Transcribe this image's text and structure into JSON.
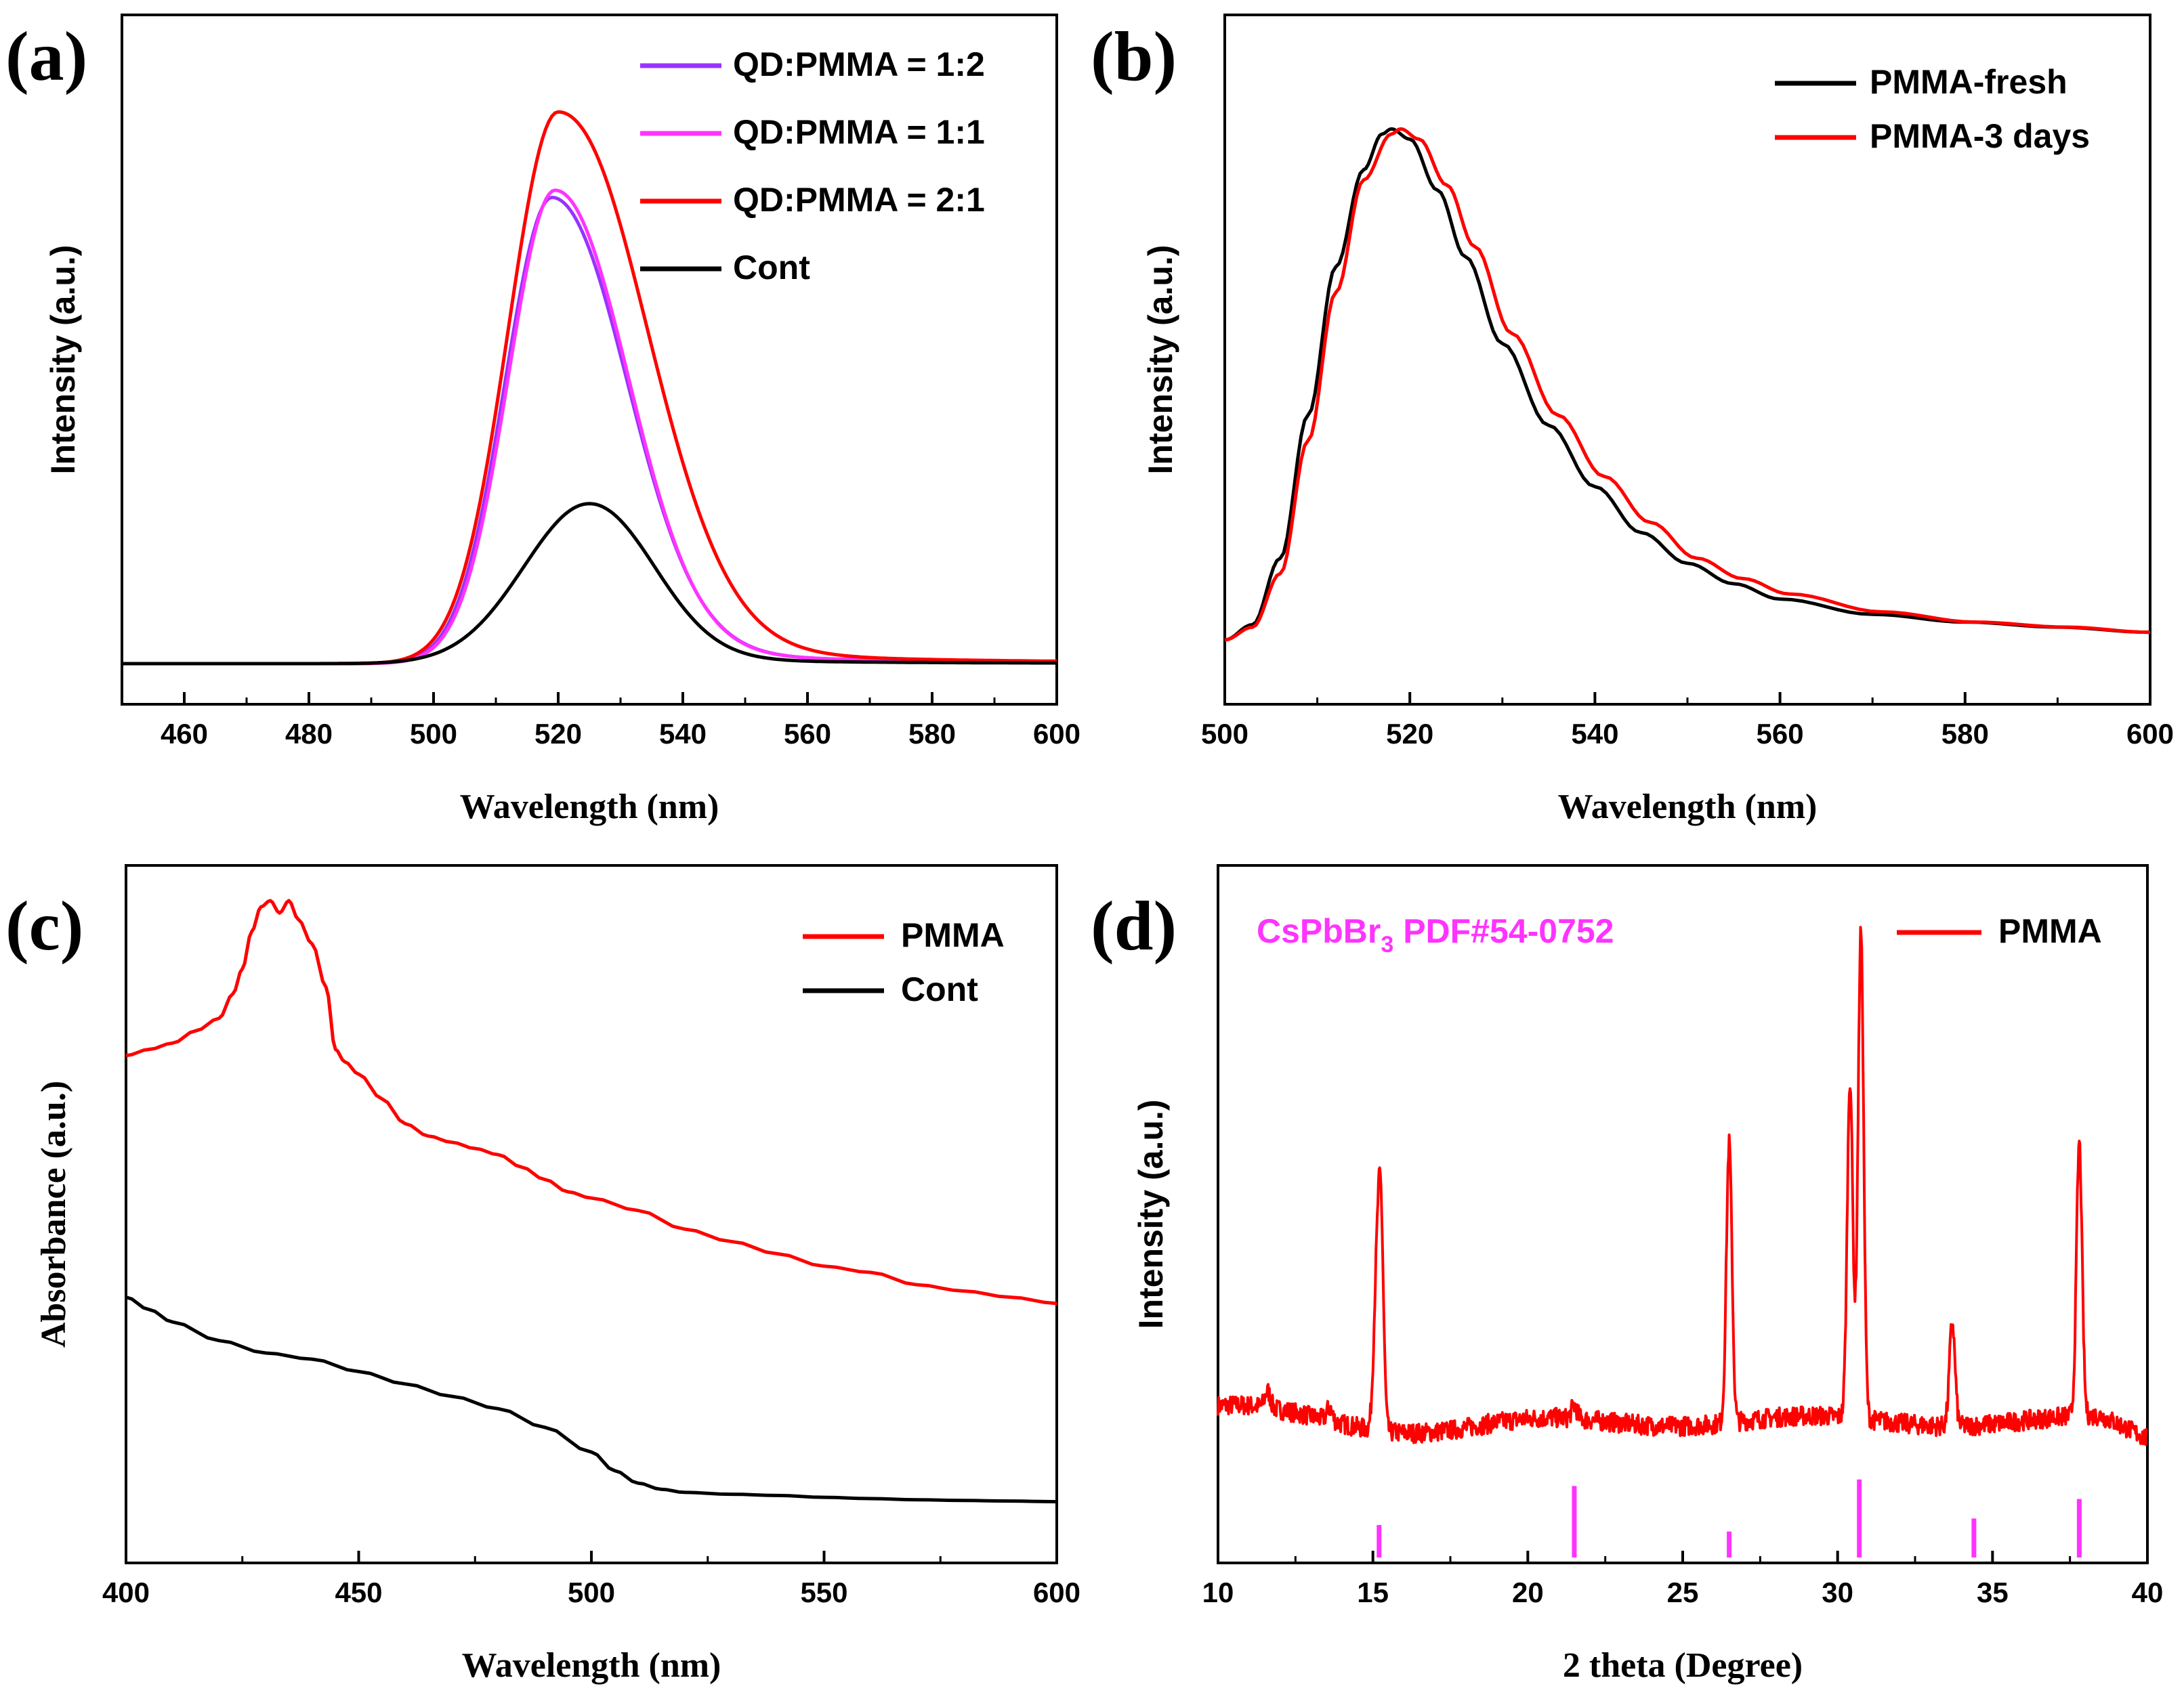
{
  "colors": {
    "black": "#000000",
    "red": "#ff0000",
    "purple": "#9933ff",
    "magenta": "#ff33ff"
  },
  "chart_data": [
    {
      "panel": "(a)",
      "type": "line",
      "xlabel": "Wavelength (nm)",
      "ylabel": "Intensity (a.u.)",
      "xlim": [
        450,
        600
      ],
      "ylim": [
        0,
        1.08
      ],
      "xticks": [
        "460",
        "480",
        "500",
        "520",
        "540",
        "560",
        "580",
        "600"
      ],
      "xtick_values": [
        460,
        480,
        500,
        520,
        540,
        560,
        580,
        600
      ],
      "legend_position": "top-right",
      "series": [
        {
          "name": "QD:PMMA = 1:2",
          "color": "#9933ff",
          "peak": 519,
          "height": 0.845,
          "sigma_left": 7.5,
          "sigma_right": 11.5,
          "tail": 0.04
        },
        {
          "name": "QD:PMMA = 1:1",
          "color": "#ff33ff",
          "peak": 519.5,
          "height": 0.858,
          "sigma_left": 7.5,
          "sigma_right": 11.2,
          "tail": 0.04
        },
        {
          "name": "QD:PMMA = 2:1",
          "color": "#ff0000",
          "peak": 520,
          "height": 1.0,
          "sigma_left": 8.0,
          "sigma_right": 13.5,
          "tail": 0.05
        },
        {
          "name": "Cont",
          "color": "#000000",
          "peak": 525,
          "height": 0.29,
          "sigma_left": 10.5,
          "sigma_right": 10.0,
          "tail": 0.04
        }
      ]
    },
    {
      "panel": "(b)",
      "type": "line",
      "xlabel": "Wavelength (nm)",
      "ylabel": "Intensity (a.u.)",
      "xlim": [
        500,
        600
      ],
      "ylim": [
        0,
        1.08
      ],
      "xticks": [
        "500",
        "520",
        "540",
        "560",
        "580",
        "600"
      ],
      "xtick_values": [
        500,
        520,
        540,
        560,
        580,
        600
      ],
      "legend_position": "top-right",
      "series": [
        {
          "name": "PMMA-fresh",
          "color": "#000000",
          "x": [
            500,
            503,
            506,
            509,
            512,
            515,
            517,
            518,
            520,
            523,
            526,
            530,
            535,
            540,
            545,
            550,
            555,
            560,
            570,
            580,
            590,
            600
          ],
          "y": [
            0.0,
            0.03,
            0.16,
            0.44,
            0.73,
            0.92,
            0.99,
            1.0,
            0.98,
            0.88,
            0.75,
            0.58,
            0.42,
            0.3,
            0.21,
            0.15,
            0.11,
            0.08,
            0.05,
            0.035,
            0.025,
            0.015
          ]
        },
        {
          "name": "PMMA-3 days",
          "color": "#ff0000",
          "x": [
            500,
            503,
            506,
            509,
            512,
            515,
            518,
            519,
            521,
            524,
            527,
            531,
            536,
            541,
            546,
            551,
            556,
            561,
            571,
            581,
            591,
            600
          ],
          "y": [
            0.0,
            0.025,
            0.13,
            0.39,
            0.68,
            0.9,
            0.99,
            1.0,
            0.98,
            0.89,
            0.77,
            0.6,
            0.44,
            0.32,
            0.23,
            0.16,
            0.12,
            0.09,
            0.055,
            0.035,
            0.025,
            0.015
          ]
        }
      ]
    },
    {
      "panel": "(c)",
      "type": "line",
      "xlabel": "Wavelength (nm)",
      "ylabel": "Absorbance (a.u.)",
      "xlim": [
        400,
        600
      ],
      "ylim": [
        0,
        1.0
      ],
      "xticks": [
        "400",
        "450",
        "500",
        "550",
        "600"
      ],
      "xtick_values": [
        400,
        450,
        500,
        550,
        600
      ],
      "legend_position": "top-right",
      "series": [
        {
          "name": "PMMA",
          "color": "#ff0000",
          "x": [
            400,
            405,
            410,
            415,
            420,
            423,
            425,
            427,
            429,
            431,
            433,
            435,
            437,
            440,
            443,
            445,
            447,
            450,
            455,
            460,
            465,
            470,
            475,
            480,
            485,
            490,
            495,
            500,
            510,
            520,
            530,
            540,
            550,
            560,
            570,
            580,
            590,
            600
          ],
          "y": [
            0.75,
            0.76,
            0.77,
            0.79,
            0.81,
            0.85,
            0.89,
            0.95,
            0.99,
            1.0,
            0.98,
            1.0,
            0.97,
            0.93,
            0.86,
            0.76,
            0.74,
            0.72,
            0.68,
            0.64,
            0.62,
            0.61,
            0.6,
            0.59,
            0.57,
            0.55,
            0.53,
            0.52,
            0.5,
            0.47,
            0.45,
            0.43,
            0.41,
            0.4,
            0.38,
            0.37,
            0.36,
            0.35
          ]
        },
        {
          "name": "Cont",
          "color": "#000000",
          "x": [
            400,
            405,
            410,
            420,
            430,
            440,
            450,
            460,
            470,
            480,
            490,
            500,
            505,
            510,
            515,
            520,
            530,
            540,
            550,
            560,
            570,
            580,
            590,
            600
          ],
          "y": [
            0.36,
            0.34,
            0.32,
            0.29,
            0.27,
            0.26,
            0.24,
            0.22,
            0.2,
            0.18,
            0.15,
            0.11,
            0.08,
            0.06,
            0.05,
            0.045,
            0.042,
            0.04,
            0.037,
            0.035,
            0.033,
            0.032,
            0.031,
            0.03
          ]
        }
      ]
    },
    {
      "panel": "(d)",
      "type": "line",
      "xlabel": "2 theta (Degree)",
      "ylabel": "Intensity (a.u.)",
      "xlim": [
        10,
        40
      ],
      "ylim": [
        0,
        1.0
      ],
      "xticks": [
        "10",
        "15",
        "20",
        "25",
        "30",
        "35",
        "40"
      ],
      "xtick_values": [
        10,
        15,
        20,
        25,
        30,
        35,
        40
      ],
      "legend_position": "top-right",
      "reference_label": "CsPbBr",
      "reference_label_sub": "3",
      "reference_label_rest": " PDF#54-0752",
      "series": [
        {
          "name": "PMMA",
          "color": "#ff0000",
          "baseline": 0.21,
          "peaks": [
            [
              11.6,
              0.025
            ],
            [
              13.6,
              0.02
            ],
            [
              15.1,
              0.18
            ],
            [
              15.25,
              0.34
            ],
            [
              26.5,
              0.43
            ],
            [
              30.4,
              0.52
            ],
            [
              30.75,
              0.75
            ],
            [
              33.7,
              0.16
            ],
            [
              37.8,
              0.42
            ],
            [
              21.5,
              0.02
            ]
          ]
        }
      ],
      "reference_sticks": {
        "name": "CsPbBr3 PDF#54-0752",
        "color": "#ff33ff",
        "positions": [
          15.2,
          21.5,
          26.5,
          30.7,
          34.4,
          37.8
        ],
        "heights": [
          0.05,
          0.11,
          0.04,
          0.12,
          0.06,
          0.09
        ]
      }
    }
  ]
}
